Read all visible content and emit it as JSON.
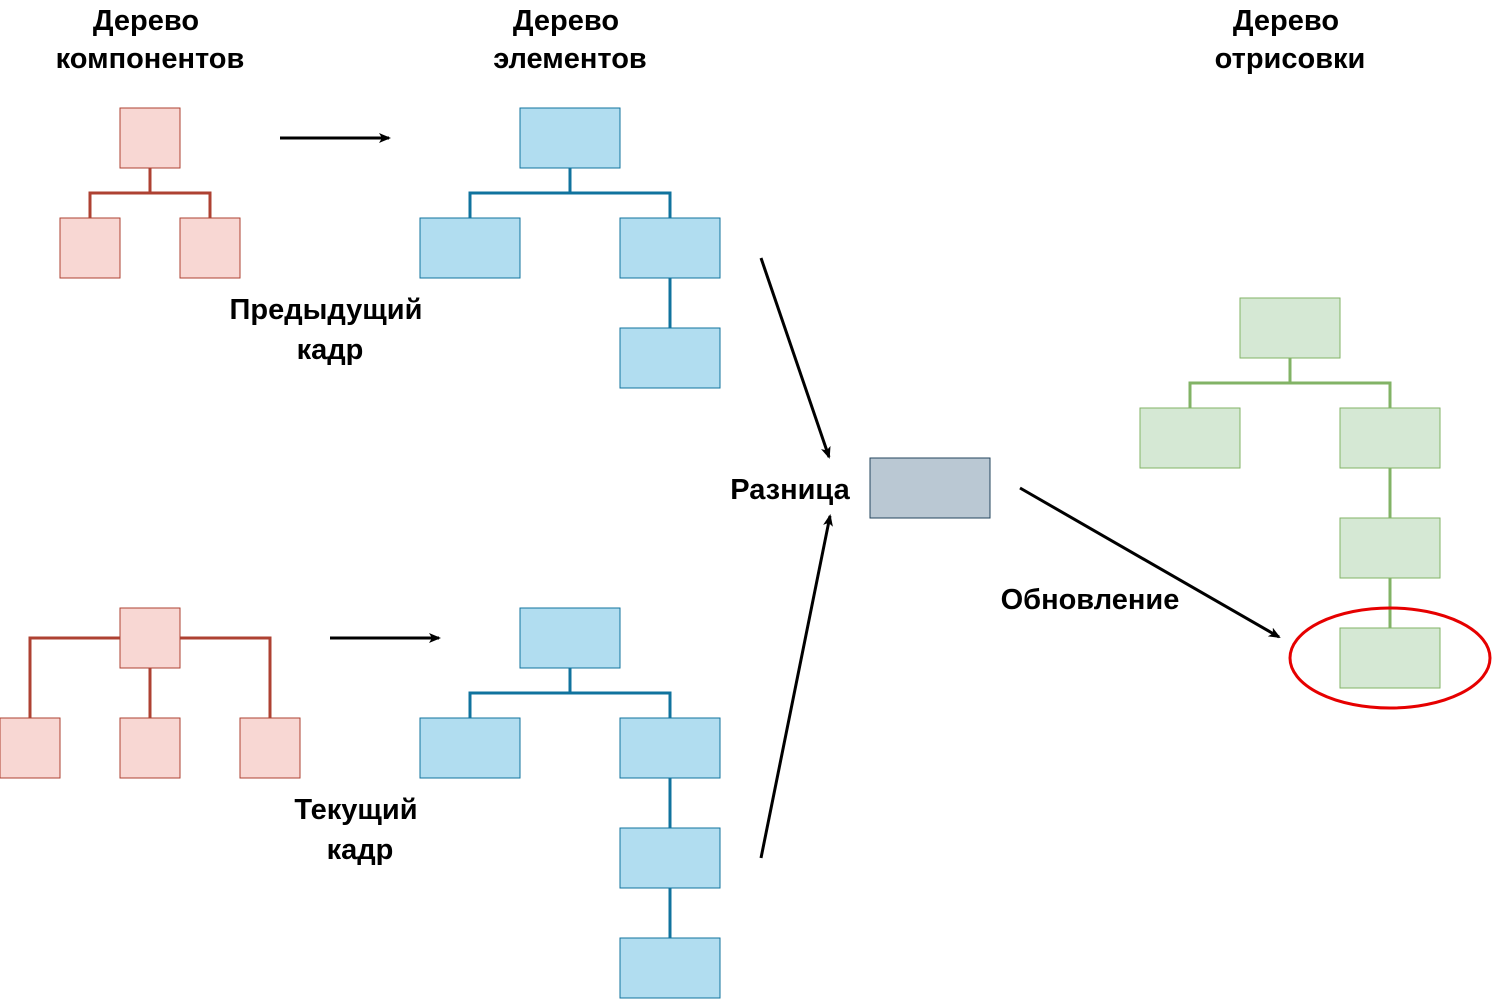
{
  "headings": {
    "component_tree": [
      "Дерево",
      "компонентов"
    ],
    "element_tree": [
      "Дерево",
      "элементов"
    ],
    "render_tree": [
      "Дерево",
      "отрисовки"
    ]
  },
  "labels": {
    "previous_frame": [
      "Предыдущий",
      "кадр"
    ],
    "current_frame": [
      "Текущий",
      "кадр"
    ],
    "diff": "Разница",
    "update": "Обновление"
  },
  "colors": {
    "component_fill": "#f8d7d3",
    "component_stroke": "#ae4132",
    "element_fill": "#b1ddf0",
    "element_stroke": "#10739e",
    "render_fill": "#d5e8d4",
    "render_stroke": "#82b366",
    "diff_fill": "#bac8d3",
    "highlight": "#e60000",
    "arrow": "#000000"
  }
}
